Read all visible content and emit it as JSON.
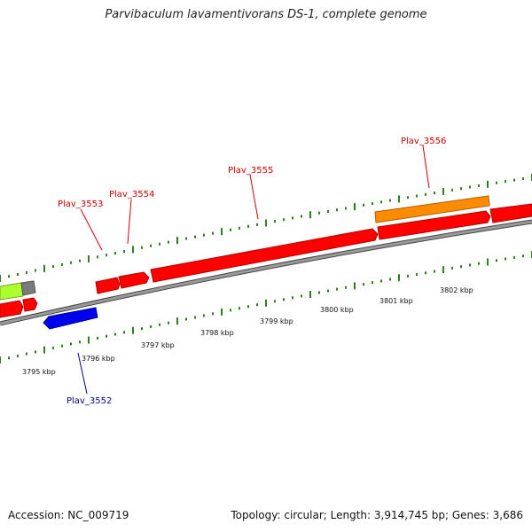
{
  "title": "Parvibaculum lavamentivorans DS-1, complete genome",
  "footer": {
    "accession": "Accession: NC_009719",
    "summary": "Topology: circular; Length: 3,914,745 bp; Genes: 3,686"
  },
  "colors": {
    "forward_gene": "#ff0000",
    "reverse_gene": "#0000ff",
    "orange_feature": "#ff8c00",
    "green_feature": "#adff2f",
    "gray_feature": "#808080",
    "tick": "#2e7d1e",
    "backbone": "#808080"
  },
  "scale_labels": [
    "3795 kbp",
    "3796 kbp",
    "3797 kbp",
    "3798 kbp",
    "3799 kbp",
    "3800 kbp",
    "3801 kbp",
    "3802 kbp"
  ],
  "gene_labels": [
    {
      "id": "g3553",
      "text": "Plav_3553",
      "color": "#cc0000"
    },
    {
      "id": "g3554",
      "text": "Plav_3554",
      "color": "#cc0000"
    },
    {
      "id": "g3555",
      "text": "Plav_3555",
      "color": "#cc0000"
    },
    {
      "id": "g3556",
      "text": "Plav_3556",
      "color": "#cc0000"
    },
    {
      "id": "g3552",
      "text": "Plav_3552",
      "color": "#00008b"
    }
  ]
}
